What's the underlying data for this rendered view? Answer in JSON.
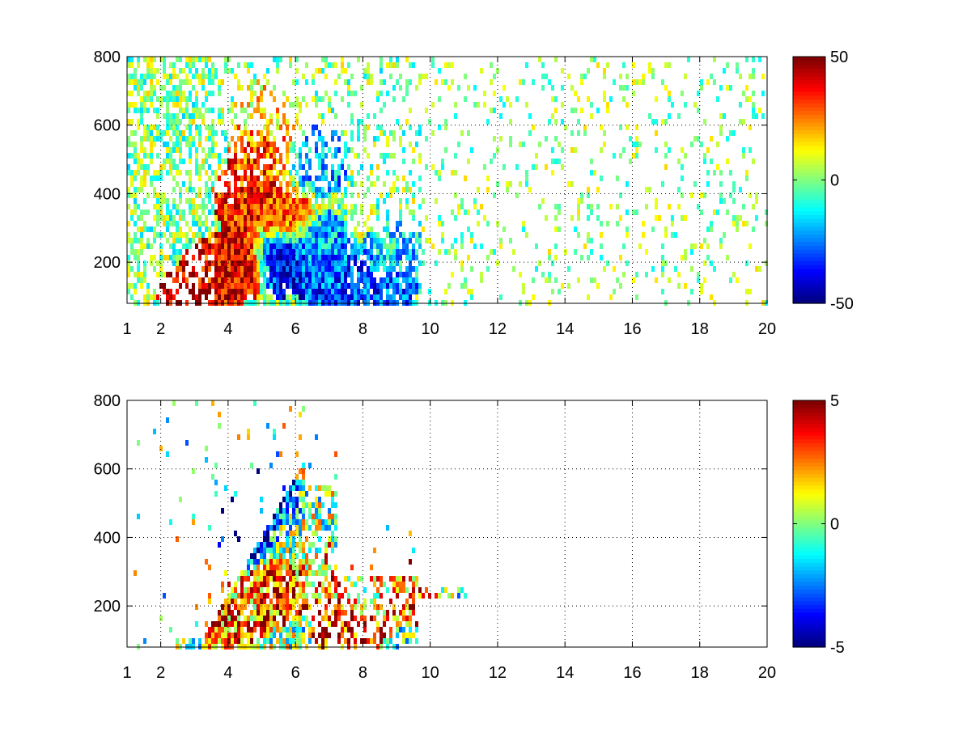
{
  "chart_data": [
    {
      "type": "heatmap",
      "title": "",
      "xlabel": "",
      "ylabel": "",
      "xlim": [
        1,
        20
      ],
      "ylim": [
        80,
        800
      ],
      "xticks": [
        "1",
        "2",
        "4",
        "6",
        "8",
        "10",
        "12",
        "14",
        "16",
        "18",
        "20"
      ],
      "xtick_values": [
        1,
        2,
        4,
        6,
        8,
        10,
        12,
        14,
        16,
        18,
        20
      ],
      "yticks": [
        "200",
        "400",
        "600",
        "800"
      ],
      "ytick_values": [
        200,
        400,
        600,
        800
      ],
      "grid": true,
      "colormap": "jet",
      "colorbar": {
        "min": -50,
        "max": 50,
        "labels": [
          "50",
          "0",
          "-50"
        ],
        "label_values": [
          50,
          0,
          -50
        ]
      },
      "features": [
        {
          "x": 2.9,
          "y": 100,
          "value": 45
        },
        {
          "x": 3.6,
          "y": 180,
          "value": 35
        },
        {
          "x": 4.3,
          "y": 200,
          "value": 45
        },
        {
          "x": 4.5,
          "y": 400,
          "value": 35
        },
        {
          "x": 5.0,
          "y": 520,
          "value": 30
        },
        {
          "x": 5.1,
          "y": 650,
          "value": 15
        },
        {
          "x": 5.5,
          "y": 210,
          "value": -40
        },
        {
          "x": 5.6,
          "y": 350,
          "value": 30
        },
        {
          "x": 6.5,
          "y": 260,
          "value": -20
        },
        {
          "x": 7.0,
          "y": 170,
          "value": -30
        },
        {
          "x": 8.5,
          "y": 130,
          "value": -30
        },
        {
          "x": 9.0,
          "y": 250,
          "value": -15
        },
        {
          "x": 6.6,
          "y": 500,
          "value": -20
        }
      ]
    },
    {
      "type": "heatmap",
      "title": "",
      "xlabel": "",
      "ylabel": "",
      "xlim": [
        1,
        20
      ],
      "ylim": [
        80,
        800
      ],
      "xticks": [
        "1",
        "2",
        "4",
        "6",
        "8",
        "10",
        "12",
        "14",
        "16",
        "18",
        "20"
      ],
      "xtick_values": [
        1,
        2,
        4,
        6,
        8,
        10,
        12,
        14,
        16,
        18,
        20
      ],
      "yticks": [
        "200",
        "400",
        "600",
        "800"
      ],
      "ytick_values": [
        200,
        400,
        600,
        800
      ],
      "grid": true,
      "colormap": "jet",
      "colorbar": {
        "min": -5,
        "max": 5,
        "labels": [
          "5",
          "0",
          "-5"
        ],
        "label_values": [
          5,
          0,
          -5
        ]
      },
      "features": [
        {
          "x": 4.5,
          "y": 420,
          "value": -5
        },
        {
          "x": 5.0,
          "y": 530,
          "value": -3
        },
        {
          "x": 3.8,
          "y": 180,
          "value": 3
        },
        {
          "x": 4.5,
          "y": 220,
          "value": 2
        },
        {
          "x": 5.5,
          "y": 260,
          "value": 4
        },
        {
          "x": 6.5,
          "y": 300,
          "value": 2
        },
        {
          "x": 7.5,
          "y": 130,
          "value": 4
        },
        {
          "x": 8.5,
          "y": 250,
          "value": 1
        },
        {
          "x": 9.2,
          "y": 250,
          "value": 3
        },
        {
          "x": 5.8,
          "y": 380,
          "value": 0
        },
        {
          "x": 2.5,
          "y": 95,
          "value": 0
        }
      ]
    }
  ]
}
